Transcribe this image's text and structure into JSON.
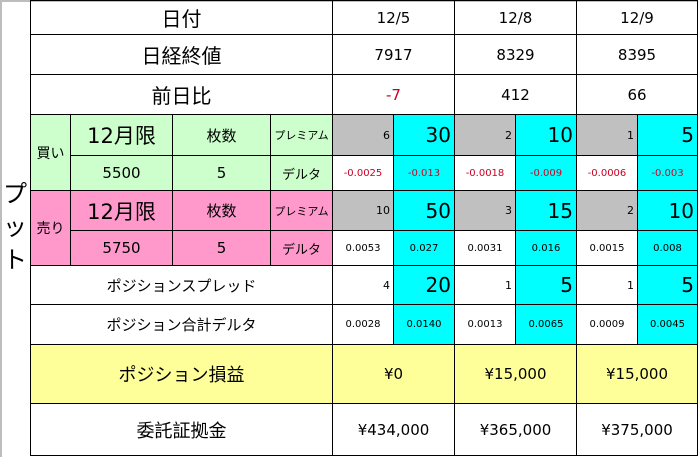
{
  "side_label": [
    "プ",
    "ッ",
    "ト"
  ],
  "header": {
    "date_label": "日付",
    "dates": [
      "12/5",
      "12/8",
      "12/9"
    ]
  },
  "nikkei": {
    "label": "日経終値",
    "values": [
      "7917",
      "8329",
      "8395"
    ]
  },
  "change": {
    "label": "前日比",
    "values": [
      "-7",
      "412",
      "66"
    ]
  },
  "buy": {
    "side": "買い",
    "month": "12月限",
    "qty_label": "枚数",
    "strike": "5500",
    "qty": "5",
    "premium_label": "プレミアム",
    "delta_label": "デルタ",
    "premium": [
      [
        "6",
        "30"
      ],
      [
        "2",
        "10"
      ],
      [
        "1",
        "5"
      ]
    ],
    "delta": [
      [
        "-0.0025",
        "-0.013"
      ],
      [
        "-0.0018",
        "-0.009"
      ],
      [
        "-0.0006",
        "-0.003"
      ]
    ]
  },
  "sell": {
    "side": "売り",
    "month": "12月限",
    "qty_label": "枚数",
    "strike": "5750",
    "qty": "5",
    "premium_label": "プレミアム",
    "delta_label": "デルタ",
    "premium": [
      [
        "10",
        "50"
      ],
      [
        "3",
        "15"
      ],
      [
        "2",
        "10"
      ]
    ],
    "delta": [
      [
        "0.0053",
        "0.027"
      ],
      [
        "0.0031",
        "0.016"
      ],
      [
        "0.0015",
        "0.008"
      ]
    ]
  },
  "spread": {
    "label": "ポジションスプレッド",
    "values": [
      [
        "4",
        "20"
      ],
      [
        "1",
        "5"
      ],
      [
        "1",
        "5"
      ]
    ]
  },
  "total_delta": {
    "label": "ポジション合計デルタ",
    "values": [
      [
        "0.0028",
        "0.0140"
      ],
      [
        "0.0013",
        "0.0065"
      ],
      [
        "0.0009",
        "0.0045"
      ]
    ]
  },
  "pnl": {
    "label": "ポジション損益",
    "values": [
      "¥0",
      "¥15,000",
      "¥15,000"
    ]
  },
  "margin": {
    "label": "委託証拠金",
    "values": [
      "¥434,000",
      "¥365,000",
      "¥375,000"
    ]
  },
  "colors": {
    "buy": "#ccffcc",
    "sell": "#ff99cc",
    "unit": "#c0c0c0",
    "position": "#00ffff",
    "pnl": "#ffff99",
    "negative": "#cc0022"
  }
}
